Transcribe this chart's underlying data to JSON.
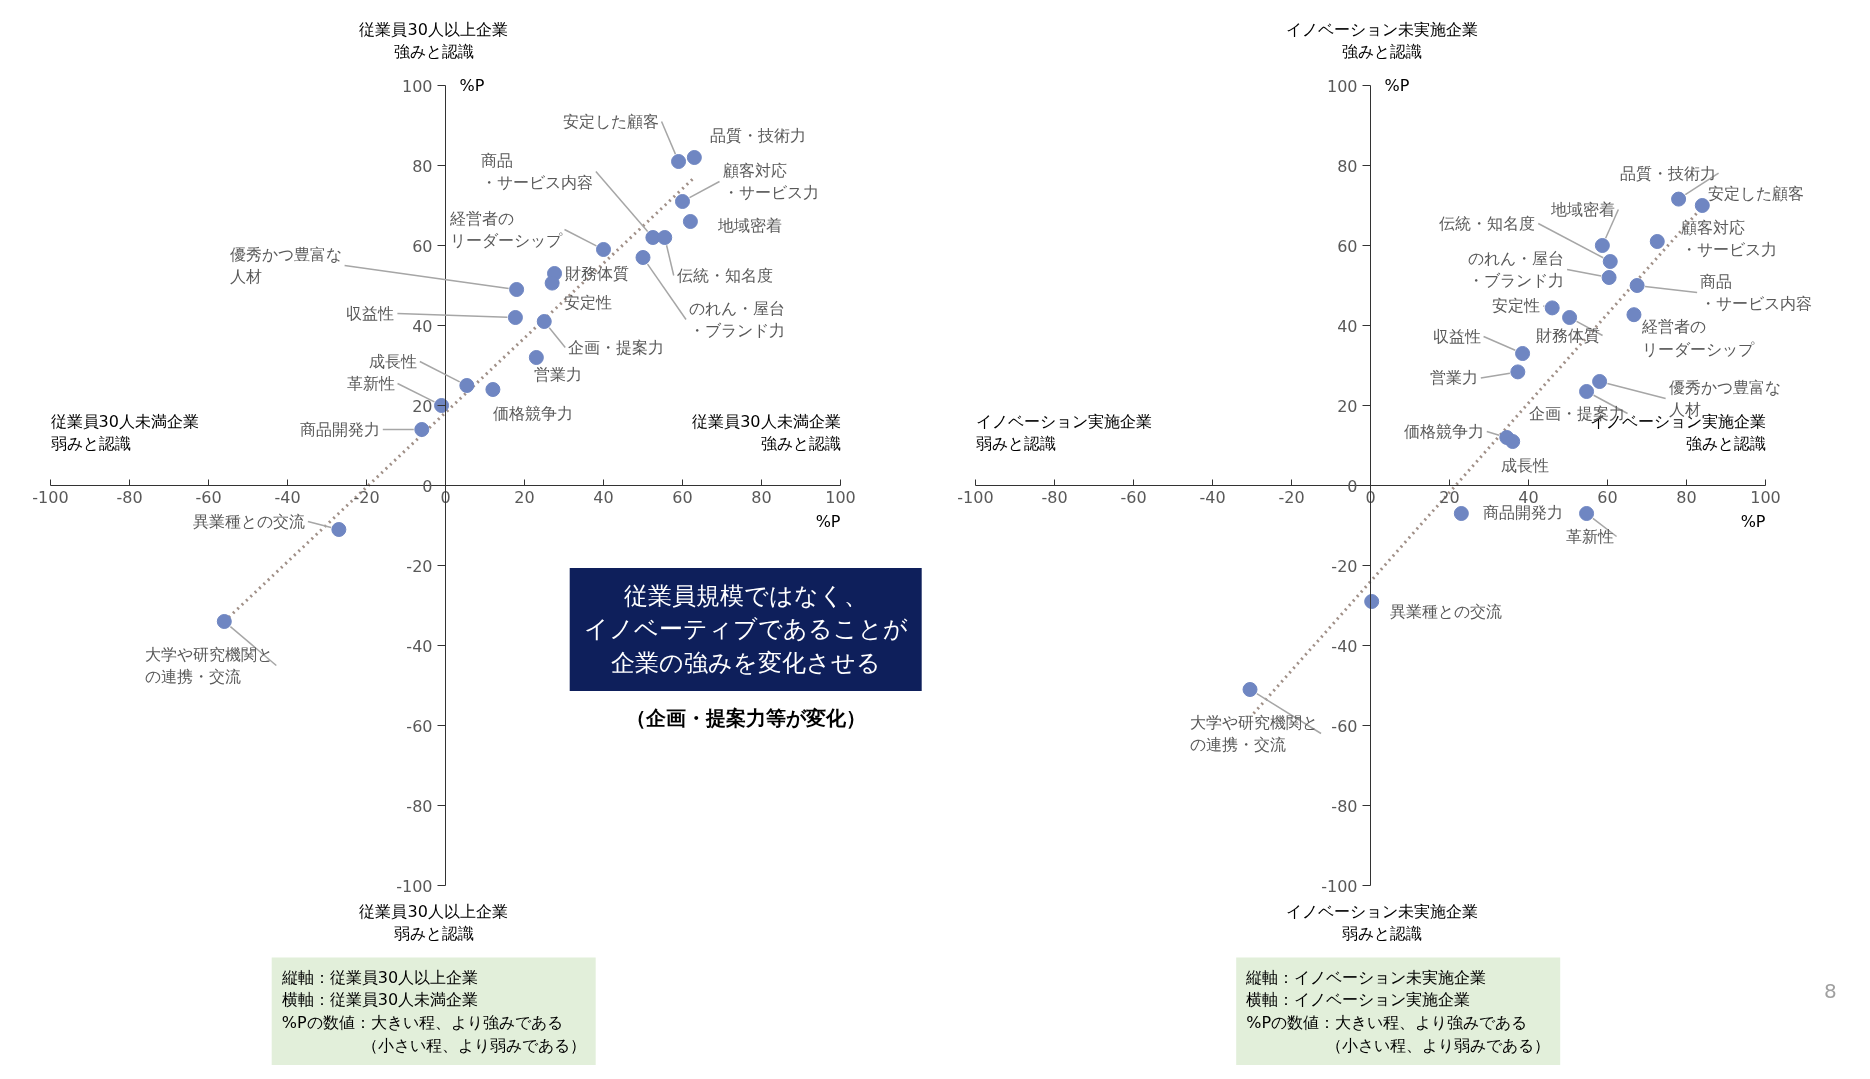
{
  "chart_data": [
    {
      "type": "scatter",
      "xlabel": "%P",
      "ylabel": "%P",
      "xlim": [
        -100,
        100
      ],
      "ylim": [
        -100,
        100
      ],
      "xticks": [
        -100,
        -80,
        -60,
        -40,
        -20,
        0,
        20,
        40,
        60,
        80,
        100
      ],
      "yticks": [
        -100,
        -80,
        -60,
        -40,
        -20,
        0,
        20,
        40,
        60,
        80,
        100
      ],
      "series": [
        {
          "type": "line",
          "marker": "none",
          "line_style": "dotted",
          "color": "#a09088",
          "x": [
            -56,
            63
          ],
          "values": [
            -34,
            77
          ]
        },
        {
          "marker": "circle",
          "color": "#6f86c2",
          "x": [
            63,
            59,
            60,
            62,
            52.5,
            55.5,
            40,
            50,
            27.6,
            27,
            18,
            17.7,
            25,
            23,
            5.4,
            12,
            -1,
            -6,
            -27,
            -56
          ],
          "values": [
            82,
            81,
            71,
            66,
            62,
            62,
            59,
            57,
            53,
            50.6,
            49,
            42,
            41,
            32,
            25,
            24,
            20,
            14,
            -11,
            -34
          ]
        }
      ],
      "annotations": [
        "従業員30人以上企業強みと認識",
        "従業員30人以上企業弱みと認識",
        "従業員30人未満企業弱みと認識",
        "従業員30人未満企業強みと認識",
        "縦軸：従業員30人以上企業横軸：従業員30人未満企業%Pの数値：大きい程、より強みである（小さい程、より弱みである）",
        "従業員規模ではなく、イノベーティブであることが企業の強みを変化させる",
        "（企画・提案力等が変化）",
        {
          "text": "品質・技術力",
          "x": 63,
          "y": 82
        },
        {
          "text": "安定した顧客",
          "x": 59,
          "y": 81
        },
        {
          "text": "顧客対応・サービス力",
          "x": 60,
          "y": 71
        },
        {
          "text": "地域密着",
          "x": 62,
          "y": 66
        },
        {
          "text": "商品・サービス内容",
          "x": 52.5,
          "y": 62
        },
        {
          "text": "伝統・知名度",
          "x": 55.5,
          "y": 62
        },
        {
          "text": "経営者のリーダーシップ",
          "x": 40,
          "y": 59
        },
        {
          "text": "のれん・屋台・ブランド力",
          "x": 50,
          "y": 57
        },
        {
          "text": "財務体質",
          "x": 27.6,
          "y": 53
        },
        {
          "text": "安定性",
          "x": 27,
          "y": 50.6
        },
        {
          "text": "優秀かつ豊富な人材",
          "x": 18,
          "y": 49
        },
        {
          "text": "収益性",
          "x": 17.7,
          "y": 42
        },
        {
          "text": "企画・提案力",
          "x": 25,
          "y": 41
        },
        {
          "text": "営業力",
          "x": 23,
          "y": 32
        },
        {
          "text": "成長性",
          "x": 5.4,
          "y": 25
        },
        {
          "text": "価格競争力",
          "x": 12,
          "y": 24
        },
        {
          "text": "革新性",
          "x": -1,
          "y": 20
        },
        {
          "text": "商品開発力",
          "x": -6,
          "y": 14
        },
        {
          "text": "異業種との交流",
          "x": -27,
          "y": -11
        },
        {
          "text": "大学や研究機関との連携・交流",
          "x": -56,
          "y": -34
        }
      ]
    },
    {
      "type": "scatter",
      "xlabel": "%P",
      "ylabel": "%P",
      "xlim": [
        -100,
        100
      ],
      "ylim": [
        -100,
        100
      ],
      "xticks": [
        -100,
        -80,
        -60,
        -40,
        -20,
        0,
        20,
        40,
        60,
        80,
        100
      ],
      "yticks": [
        -100,
        -80,
        -60,
        -40,
        -20,
        0,
        20,
        40,
        60,
        80,
        100
      ],
      "series": [
        {
          "type": "line",
          "marker": "none",
          "line_style": "dotted",
          "color": "#a09088",
          "x": [
            -29.6,
            84.3
          ],
          "values": [
            -57,
            70
          ]
        },
        {
          "marker": "circle",
          "color": "#6f86c2",
          "x": [
            78,
            84,
            72.6,
            58.7,
            60.7,
            60.4,
            67.5,
            66.7,
            46,
            50.4,
            38.5,
            37.3,
            58,
            54.7,
            34.5,
            36,
            23,
            54.7,
            0.3,
            -30.5
          ],
          "values": [
            71.6,
            70,
            61,
            60,
            56,
            52,
            50,
            42.7,
            44.4,
            42,
            33,
            28.4,
            26,
            23.5,
            12,
            11,
            -7,
            -7,
            -29,
            -51
          ]
        }
      ],
      "annotations": [
        "イノベーション未実施企業強みと認識",
        "イノベーション未実施企業弱みと認識",
        "イノベーション実施企業弱みと認識",
        "イノベーション実施企業強みと認識",
        "縦軸：イノベーション未実施企業横軸：イノベーション実施企業%Pの数値：大きい程、より強みである（小さい程、より弱みである）",
        "8",
        {
          "text": "品質・技術力",
          "x": 78,
          "y": 71.6
        },
        {
          "text": "安定した顧客",
          "x": 84,
          "y": 70
        },
        {
          "text": "顧客対応・サービス力",
          "x": 72.6,
          "y": 61
        },
        {
          "text": "地域密着",
          "x": 58.7,
          "y": 60
        },
        {
          "text": "伝統・知名度",
          "x": 60.7,
          "y": 56
        },
        {
          "text": "のれん・屋台・ブランド力",
          "x": 60.4,
          "y": 52
        },
        {
          "text": "商品・サービス内容",
          "x": 67.5,
          "y": 50
        },
        {
          "text": "経営者のリーダーシップ",
          "x": 66.7,
          "y": 42.7
        },
        {
          "text": "安定性",
          "x": 46,
          "y": 44.4
        },
        {
          "text": "財務体質",
          "x": 50.4,
          "y": 42
        },
        {
          "text": "収益性",
          "x": 38.5,
          "y": 33
        },
        {
          "text": "営業力",
          "x": 37.3,
          "y": 28.4
        },
        {
          "text": "優秀かつ豊富な人材",
          "x": 58,
          "y": 26
        },
        {
          "text": "企画・提案力",
          "x": 54.7,
          "y": 23.5
        },
        {
          "text": "価格競争力",
          "x": 34.5,
          "y": 12
        },
        {
          "text": "成長性",
          "x": 36,
          "y": 11
        },
        {
          "text": "商品開発力",
          "x": 23,
          "y": -7
        },
        {
          "text": "革新性",
          "x": 54.7,
          "y": -7
        },
        {
          "text": "異業種との交流",
          "x": 0.3,
          "y": -29
        },
        {
          "text": "大学や研究機関との連携・交流",
          "x": -30.5,
          "y": -51
        }
      ]
    }
  ]
}
